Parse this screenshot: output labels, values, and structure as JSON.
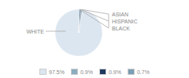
{
  "chart_data": {
    "type": "pie",
    "categories": [
      "WHITE",
      "ASIAN",
      "HISPANIC",
      "BLACK"
    ],
    "values": [
      97.5,
      0.9,
      0.9,
      0.7
    ],
    "value_labels": [
      "97.5%",
      "0.9%",
      "0.9%",
      "0.7%"
    ],
    "colors": [
      "#dce6f0",
      "#8baebf",
      "#1e3a5f",
      "#7a9fb5"
    ],
    "legend": "bottom"
  }
}
